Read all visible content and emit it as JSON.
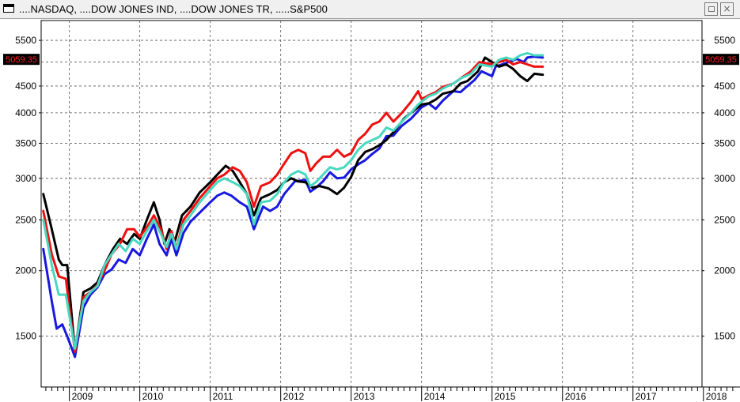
{
  "window": {
    "title": "....NASDAQ, ....DOW JONES IND, ....DOW JONES TR, .....S&P500",
    "close_glyph": "×"
  },
  "last_value_label": "5059.35",
  "colors": {
    "grid": "#555555",
    "last_value_bg": "#000000",
    "last_value_text": "#ff2020"
  },
  "chart_data": {
    "type": "line",
    "y_scale": "log",
    "ylim": [
      1200,
      6000
    ],
    "y_ticks": [
      1500,
      2000,
      2500,
      3000,
      3500,
      4000,
      4500,
      5500
    ],
    "xlim": [
      2008.6,
      2017.98
    ],
    "x_tick_labels": [
      {
        "label": "2009",
        "x": 2009.0
      },
      {
        "label": "2010",
        "x": 2010.0
      },
      {
        "label": "2011",
        "x": 2011.0
      },
      {
        "label": "2012",
        "x": 2012.0
      },
      {
        "label": "2013",
        "x": 2013.0
      },
      {
        "label": "2014",
        "x": 2014.0
      },
      {
        "label": "2015",
        "x": 2015.0
      },
      {
        "label": "2016",
        "x": 2016.0
      },
      {
        "label": "2017",
        "x": 2017.0
      },
      {
        "label": "2018",
        "x": 2018.0
      }
    ],
    "grid": true,
    "series": [
      {
        "color": "#1818e0",
        "points": [
          [
            2008.63,
            2200
          ],
          [
            2008.75,
            1750
          ],
          [
            2008.82,
            1550
          ],
          [
            2008.9,
            1580
          ],
          [
            2008.97,
            1500
          ],
          [
            2009.08,
            1370
          ],
          [
            2009.2,
            1700
          ],
          [
            2009.3,
            1800
          ],
          [
            2009.4,
            1860
          ],
          [
            2009.5,
            1970
          ],
          [
            2009.6,
            2010
          ],
          [
            2009.7,
            2100
          ],
          [
            2009.8,
            2070
          ],
          [
            2009.9,
            2200
          ],
          [
            2010.0,
            2140
          ],
          [
            2010.1,
            2300
          ],
          [
            2010.2,
            2450
          ],
          [
            2010.28,
            2250
          ],
          [
            2010.38,
            2140
          ],
          [
            2010.45,
            2300
          ],
          [
            2010.52,
            2140
          ],
          [
            2010.62,
            2360
          ],
          [
            2010.72,
            2480
          ],
          [
            2010.85,
            2580
          ],
          [
            2011.0,
            2700
          ],
          [
            2011.1,
            2780
          ],
          [
            2011.2,
            2820
          ],
          [
            2011.3,
            2780
          ],
          [
            2011.42,
            2700
          ],
          [
            2011.52,
            2650
          ],
          [
            2011.62,
            2400
          ],
          [
            2011.75,
            2650
          ],
          [
            2011.85,
            2600
          ],
          [
            2011.95,
            2650
          ],
          [
            2012.05,
            2800
          ],
          [
            2012.2,
            2960
          ],
          [
            2012.35,
            2980
          ],
          [
            2012.42,
            2830
          ],
          [
            2012.5,
            2880
          ],
          [
            2012.6,
            2960
          ],
          [
            2012.7,
            3080
          ],
          [
            2012.8,
            3000
          ],
          [
            2012.9,
            3010
          ],
          [
            2013.0,
            3120
          ],
          [
            2013.1,
            3190
          ],
          [
            2013.2,
            3250
          ],
          [
            2013.3,
            3340
          ],
          [
            2013.4,
            3420
          ],
          [
            2013.5,
            3610
          ],
          [
            2013.6,
            3620
          ],
          [
            2013.72,
            3780
          ],
          [
            2013.85,
            3900
          ],
          [
            2014.0,
            4100
          ],
          [
            2014.1,
            4170
          ],
          [
            2014.2,
            4070
          ],
          [
            2014.3,
            4220
          ],
          [
            2014.45,
            4400
          ],
          [
            2014.55,
            4380
          ],
          [
            2014.65,
            4500
          ],
          [
            2014.75,
            4620
          ],
          [
            2014.85,
            4800
          ],
          [
            2015.0,
            4700
          ],
          [
            2015.05,
            4900
          ],
          [
            2015.2,
            4980
          ],
          [
            2015.35,
            5070
          ],
          [
            2015.45,
            5000
          ],
          [
            2015.5,
            5100
          ],
          [
            2015.6,
            5120
          ],
          [
            2015.72,
            5100
          ]
        ]
      },
      {
        "color": "#000000",
        "points": [
          [
            2008.63,
            2800
          ],
          [
            2008.75,
            2400
          ],
          [
            2008.85,
            2100
          ],
          [
            2008.9,
            2050
          ],
          [
            2008.97,
            2050
          ],
          [
            2009.08,
            1400
          ],
          [
            2009.2,
            1820
          ],
          [
            2009.3,
            1850
          ],
          [
            2009.4,
            1900
          ],
          [
            2009.5,
            2050
          ],
          [
            2009.62,
            2200
          ],
          [
            2009.72,
            2300
          ],
          [
            2009.82,
            2250
          ],
          [
            2009.92,
            2350
          ],
          [
            2010.0,
            2300
          ],
          [
            2010.1,
            2500
          ],
          [
            2010.2,
            2700
          ],
          [
            2010.28,
            2500
          ],
          [
            2010.35,
            2250
          ],
          [
            2010.42,
            2400
          ],
          [
            2010.5,
            2280
          ],
          [
            2010.6,
            2550
          ],
          [
            2010.72,
            2650
          ],
          [
            2010.85,
            2820
          ],
          [
            2011.0,
            2950
          ],
          [
            2011.1,
            3050
          ],
          [
            2011.22,
            3170
          ],
          [
            2011.32,
            3100
          ],
          [
            2011.42,
            2950
          ],
          [
            2011.52,
            2800
          ],
          [
            2011.62,
            2550
          ],
          [
            2011.72,
            2750
          ],
          [
            2011.85,
            2800
          ],
          [
            2011.95,
            2850
          ],
          [
            2012.05,
            2950
          ],
          [
            2012.15,
            3000
          ],
          [
            2012.25,
            2960
          ],
          [
            2012.35,
            2950
          ],
          [
            2012.45,
            2880
          ],
          [
            2012.55,
            2900
          ],
          [
            2012.68,
            2870
          ],
          [
            2012.8,
            2800
          ],
          [
            2012.9,
            2880
          ],
          [
            2013.0,
            3020
          ],
          [
            2013.1,
            3250
          ],
          [
            2013.2,
            3370
          ],
          [
            2013.3,
            3410
          ],
          [
            2013.4,
            3470
          ],
          [
            2013.5,
            3550
          ],
          [
            2013.62,
            3700
          ],
          [
            2013.75,
            3900
          ],
          [
            2013.85,
            4000
          ],
          [
            2014.0,
            4150
          ],
          [
            2014.1,
            4170
          ],
          [
            2014.2,
            4240
          ],
          [
            2014.3,
            4350
          ],
          [
            2014.45,
            4400
          ],
          [
            2014.55,
            4550
          ],
          [
            2014.65,
            4600
          ],
          [
            2014.8,
            4800
          ],
          [
            2014.9,
            5100
          ],
          [
            2015.0,
            5000
          ],
          [
            2015.1,
            4900
          ],
          [
            2015.2,
            4950
          ],
          [
            2015.3,
            4850
          ],
          [
            2015.4,
            4700
          ],
          [
            2015.5,
            4600
          ],
          [
            2015.6,
            4750
          ],
          [
            2015.72,
            4730
          ]
        ]
      },
      {
        "color": "#ee1010",
        "points": [
          [
            2008.63,
            2600
          ],
          [
            2008.75,
            2150
          ],
          [
            2008.85,
            1950
          ],
          [
            2008.95,
            1930
          ],
          [
            2009.08,
            1400
          ],
          [
            2009.2,
            1780
          ],
          [
            2009.3,
            1820
          ],
          [
            2009.4,
            1880
          ],
          [
            2009.5,
            2000
          ],
          [
            2009.6,
            2150
          ],
          [
            2009.72,
            2250
          ],
          [
            2009.82,
            2400
          ],
          [
            2009.92,
            2400
          ],
          [
            2010.0,
            2320
          ],
          [
            2010.1,
            2420
          ],
          [
            2010.2,
            2550
          ],
          [
            2010.3,
            2400
          ],
          [
            2010.38,
            2200
          ],
          [
            2010.45,
            2380
          ],
          [
            2010.52,
            2200
          ],
          [
            2010.62,
            2500
          ],
          [
            2010.72,
            2600
          ],
          [
            2010.85,
            2750
          ],
          [
            2011.0,
            2900
          ],
          [
            2011.1,
            3000
          ],
          [
            2011.2,
            3050
          ],
          [
            2011.32,
            3150
          ],
          [
            2011.42,
            3100
          ],
          [
            2011.52,
            2950
          ],
          [
            2011.62,
            2650
          ],
          [
            2011.72,
            2900
          ],
          [
            2011.85,
            2950
          ],
          [
            2011.95,
            3050
          ],
          [
            2012.05,
            3200
          ],
          [
            2012.15,
            3350
          ],
          [
            2012.25,
            3400
          ],
          [
            2012.35,
            3350
          ],
          [
            2012.42,
            3100
          ],
          [
            2012.5,
            3200
          ],
          [
            2012.6,
            3300
          ],
          [
            2012.7,
            3300
          ],
          [
            2012.8,
            3400
          ],
          [
            2012.9,
            3300
          ],
          [
            2013.0,
            3350
          ],
          [
            2013.1,
            3550
          ],
          [
            2013.2,
            3650
          ],
          [
            2013.3,
            3800
          ],
          [
            2013.4,
            3850
          ],
          [
            2013.5,
            4000
          ],
          [
            2013.6,
            3850
          ],
          [
            2013.72,
            4000
          ],
          [
            2013.85,
            4200
          ],
          [
            2013.95,
            4400
          ],
          [
            2014.0,
            4250
          ],
          [
            2014.1,
            4320
          ],
          [
            2014.2,
            4380
          ],
          [
            2014.3,
            4480
          ],
          [
            2014.45,
            4550
          ],
          [
            2014.55,
            4650
          ],
          [
            2014.7,
            4800
          ],
          [
            2014.82,
            5000
          ],
          [
            2015.0,
            4950
          ],
          [
            2015.1,
            5000
          ],
          [
            2015.2,
            5050
          ],
          [
            2015.3,
            4950
          ],
          [
            2015.4,
            5000
          ],
          [
            2015.5,
            4950
          ],
          [
            2015.6,
            4900
          ],
          [
            2015.72,
            4900
          ]
        ]
      },
      {
        "color": "#48d8c0",
        "points": [
          [
            2008.63,
            2500
          ],
          [
            2008.75,
            2050
          ],
          [
            2008.85,
            1800
          ],
          [
            2008.95,
            1800
          ],
          [
            2009.08,
            1420
          ],
          [
            2009.2,
            1750
          ],
          [
            2009.3,
            1820
          ],
          [
            2009.4,
            1870
          ],
          [
            2009.5,
            2050
          ],
          [
            2009.6,
            2150
          ],
          [
            2009.7,
            2250
          ],
          [
            2009.8,
            2180
          ],
          [
            2009.9,
            2300
          ],
          [
            2010.0,
            2250
          ],
          [
            2010.1,
            2380
          ],
          [
            2010.2,
            2500
          ],
          [
            2010.3,
            2350
          ],
          [
            2010.38,
            2220
          ],
          [
            2010.45,
            2350
          ],
          [
            2010.52,
            2200
          ],
          [
            2010.62,
            2450
          ],
          [
            2010.72,
            2550
          ],
          [
            2010.85,
            2700
          ],
          [
            2011.0,
            2850
          ],
          [
            2011.1,
            2950
          ],
          [
            2011.2,
            3000
          ],
          [
            2011.32,
            2950
          ],
          [
            2011.42,
            2900
          ],
          [
            2011.52,
            2800
          ],
          [
            2011.62,
            2450
          ],
          [
            2011.72,
            2700
          ],
          [
            2011.85,
            2720
          ],
          [
            2011.95,
            2800
          ],
          [
            2012.05,
            2950
          ],
          [
            2012.15,
            3050
          ],
          [
            2012.25,
            3100
          ],
          [
            2012.35,
            3050
          ],
          [
            2012.42,
            2900
          ],
          [
            2012.5,
            2950
          ],
          [
            2012.6,
            3050
          ],
          [
            2012.7,
            3150
          ],
          [
            2012.8,
            3120
          ],
          [
            2012.9,
            3150
          ],
          [
            2013.0,
            3250
          ],
          [
            2013.1,
            3400
          ],
          [
            2013.2,
            3500
          ],
          [
            2013.3,
            3550
          ],
          [
            2013.4,
            3600
          ],
          [
            2013.5,
            3750
          ],
          [
            2013.6,
            3700
          ],
          [
            2013.72,
            3850
          ],
          [
            2013.85,
            4000
          ],
          [
            2013.95,
            4150
          ],
          [
            2014.0,
            4200
          ],
          [
            2014.1,
            4300
          ],
          [
            2014.2,
            4350
          ],
          [
            2014.3,
            4450
          ],
          [
            2014.45,
            4550
          ],
          [
            2014.55,
            4650
          ],
          [
            2014.7,
            4750
          ],
          [
            2014.82,
            4950
          ],
          [
            2015.0,
            4900
          ],
          [
            2015.1,
            5050
          ],
          [
            2015.2,
            5100
          ],
          [
            2015.3,
            5050
          ],
          [
            2015.4,
            5150
          ],
          [
            2015.5,
            5200
          ],
          [
            2015.6,
            5150
          ],
          [
            2015.72,
            5150
          ]
        ]
      }
    ]
  }
}
